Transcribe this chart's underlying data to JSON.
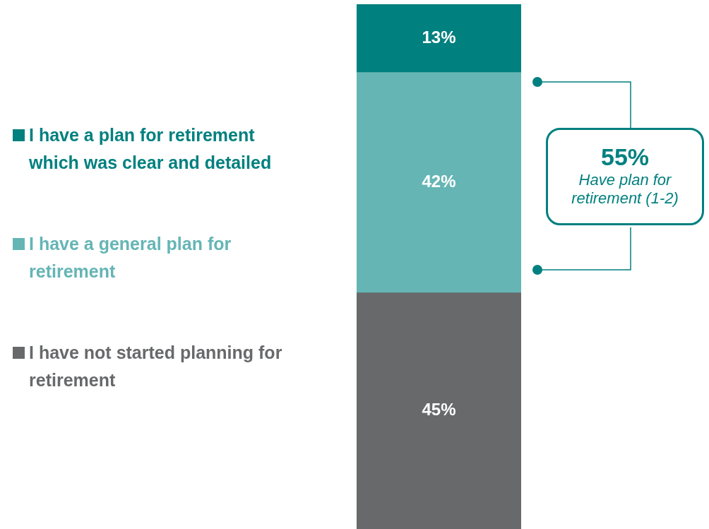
{
  "chart_data": {
    "type": "bar",
    "stacked": true,
    "categories": [
      null
    ],
    "legend": "left",
    "annotations": [
      "55%",
      "Have plan for retirement (1-2)"
    ],
    "series": [
      {
        "name": "I have not started planning for retirement",
        "color": "#68696b",
        "values": [
          45
        ],
        "value_labels": [
          "45%"
        ]
      },
      {
        "name": "I have a general plan for retirement",
        "color": "#66b5b5",
        "values": [
          42
        ],
        "value_labels": [
          "42%"
        ]
      },
      {
        "name": "I have a plan for retirement which was clear and detailed",
        "color": "#00807f",
        "values": [
          13
        ],
        "value_labels": [
          "13%"
        ]
      }
    ]
  }
}
